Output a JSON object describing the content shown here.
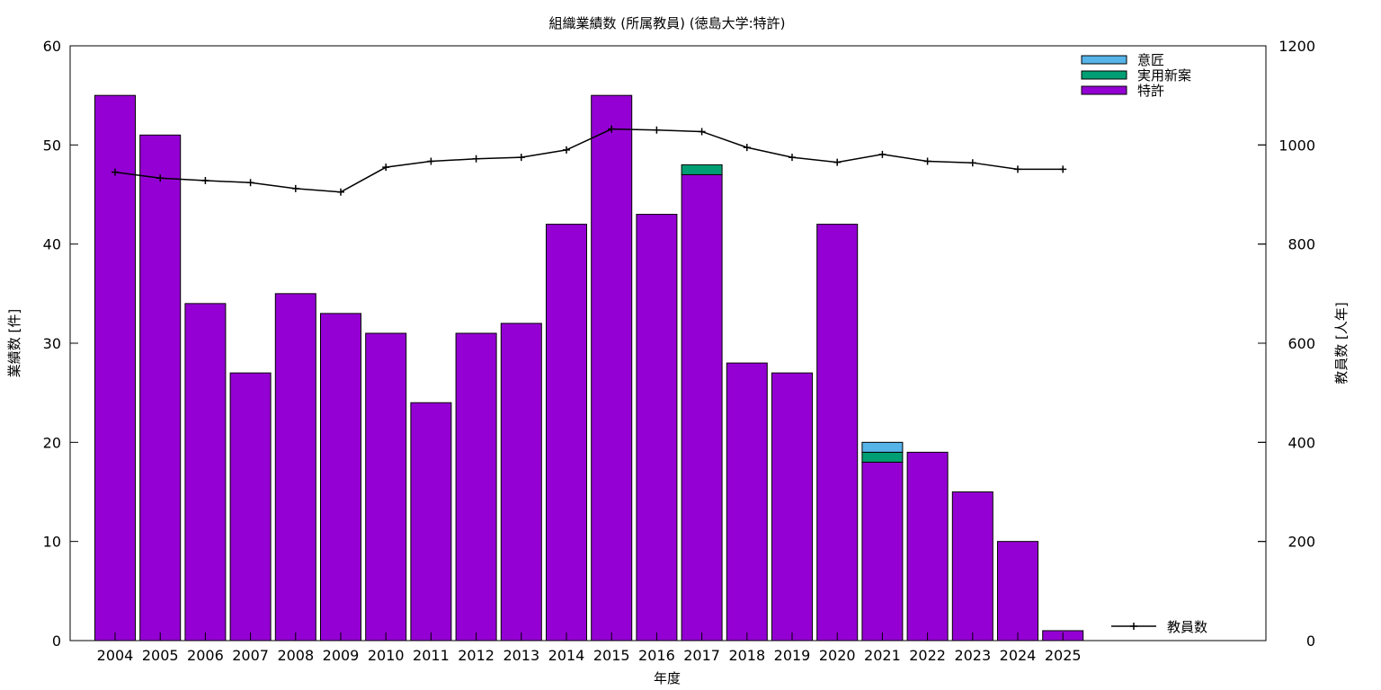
{
  "chart_data": {
    "type": "bar",
    "title": "組織業績数 (所属教員) (徳島大学:特許)",
    "xlabel": "年度",
    "ylabel": "業績数 [件]",
    "y2label": "教員数 [人年]",
    "ylim": [
      0,
      60
    ],
    "y2lim": [
      0,
      1200
    ],
    "yticks": [
      0,
      10,
      20,
      30,
      40,
      50,
      60
    ],
    "y2ticks": [
      0,
      200,
      400,
      600,
      800,
      1000,
      1200
    ],
    "categories": [
      "2004",
      "2005",
      "2006",
      "2007",
      "2008",
      "2009",
      "2010",
      "2011",
      "2012",
      "2013",
      "2014",
      "2015",
      "2016",
      "2017",
      "2018",
      "2019",
      "2020",
      "2021",
      "2022",
      "2023",
      "2024",
      "2025"
    ],
    "stacked": true,
    "series": [
      {
        "name": "特許",
        "color": "#9400d3",
        "values": [
          55,
          51,
          34,
          27,
          35,
          33,
          31,
          24,
          31,
          32,
          42,
          55,
          43,
          47,
          28,
          27,
          42,
          18,
          19,
          15,
          10,
          1
        ]
      },
      {
        "name": "実用新案",
        "color": "#009e73",
        "values": [
          0,
          0,
          0,
          0,
          0,
          0,
          0,
          0,
          0,
          0,
          0,
          0,
          0,
          1,
          0,
          0,
          0,
          1,
          0,
          0,
          0,
          0
        ]
      },
      {
        "name": "意匠",
        "color": "#56b4e9",
        "values": [
          0,
          0,
          0,
          0,
          0,
          0,
          0,
          0,
          0,
          0,
          0,
          0,
          0,
          0,
          0,
          0,
          0,
          1,
          0,
          0,
          0,
          0
        ]
      }
    ],
    "line_series": {
      "name": "教員数",
      "axis": "right",
      "color": "#000000",
      "values": [
        945,
        933,
        928,
        924,
        912,
        905,
        955,
        967,
        972,
        975,
        990,
        1032,
        1030,
        1027,
        995,
        975,
        965,
        981,
        967,
        964,
        951,
        951
      ]
    },
    "legend_bars_position": "top-right",
    "legend_line_position": "bottom-right",
    "grid": false
  }
}
